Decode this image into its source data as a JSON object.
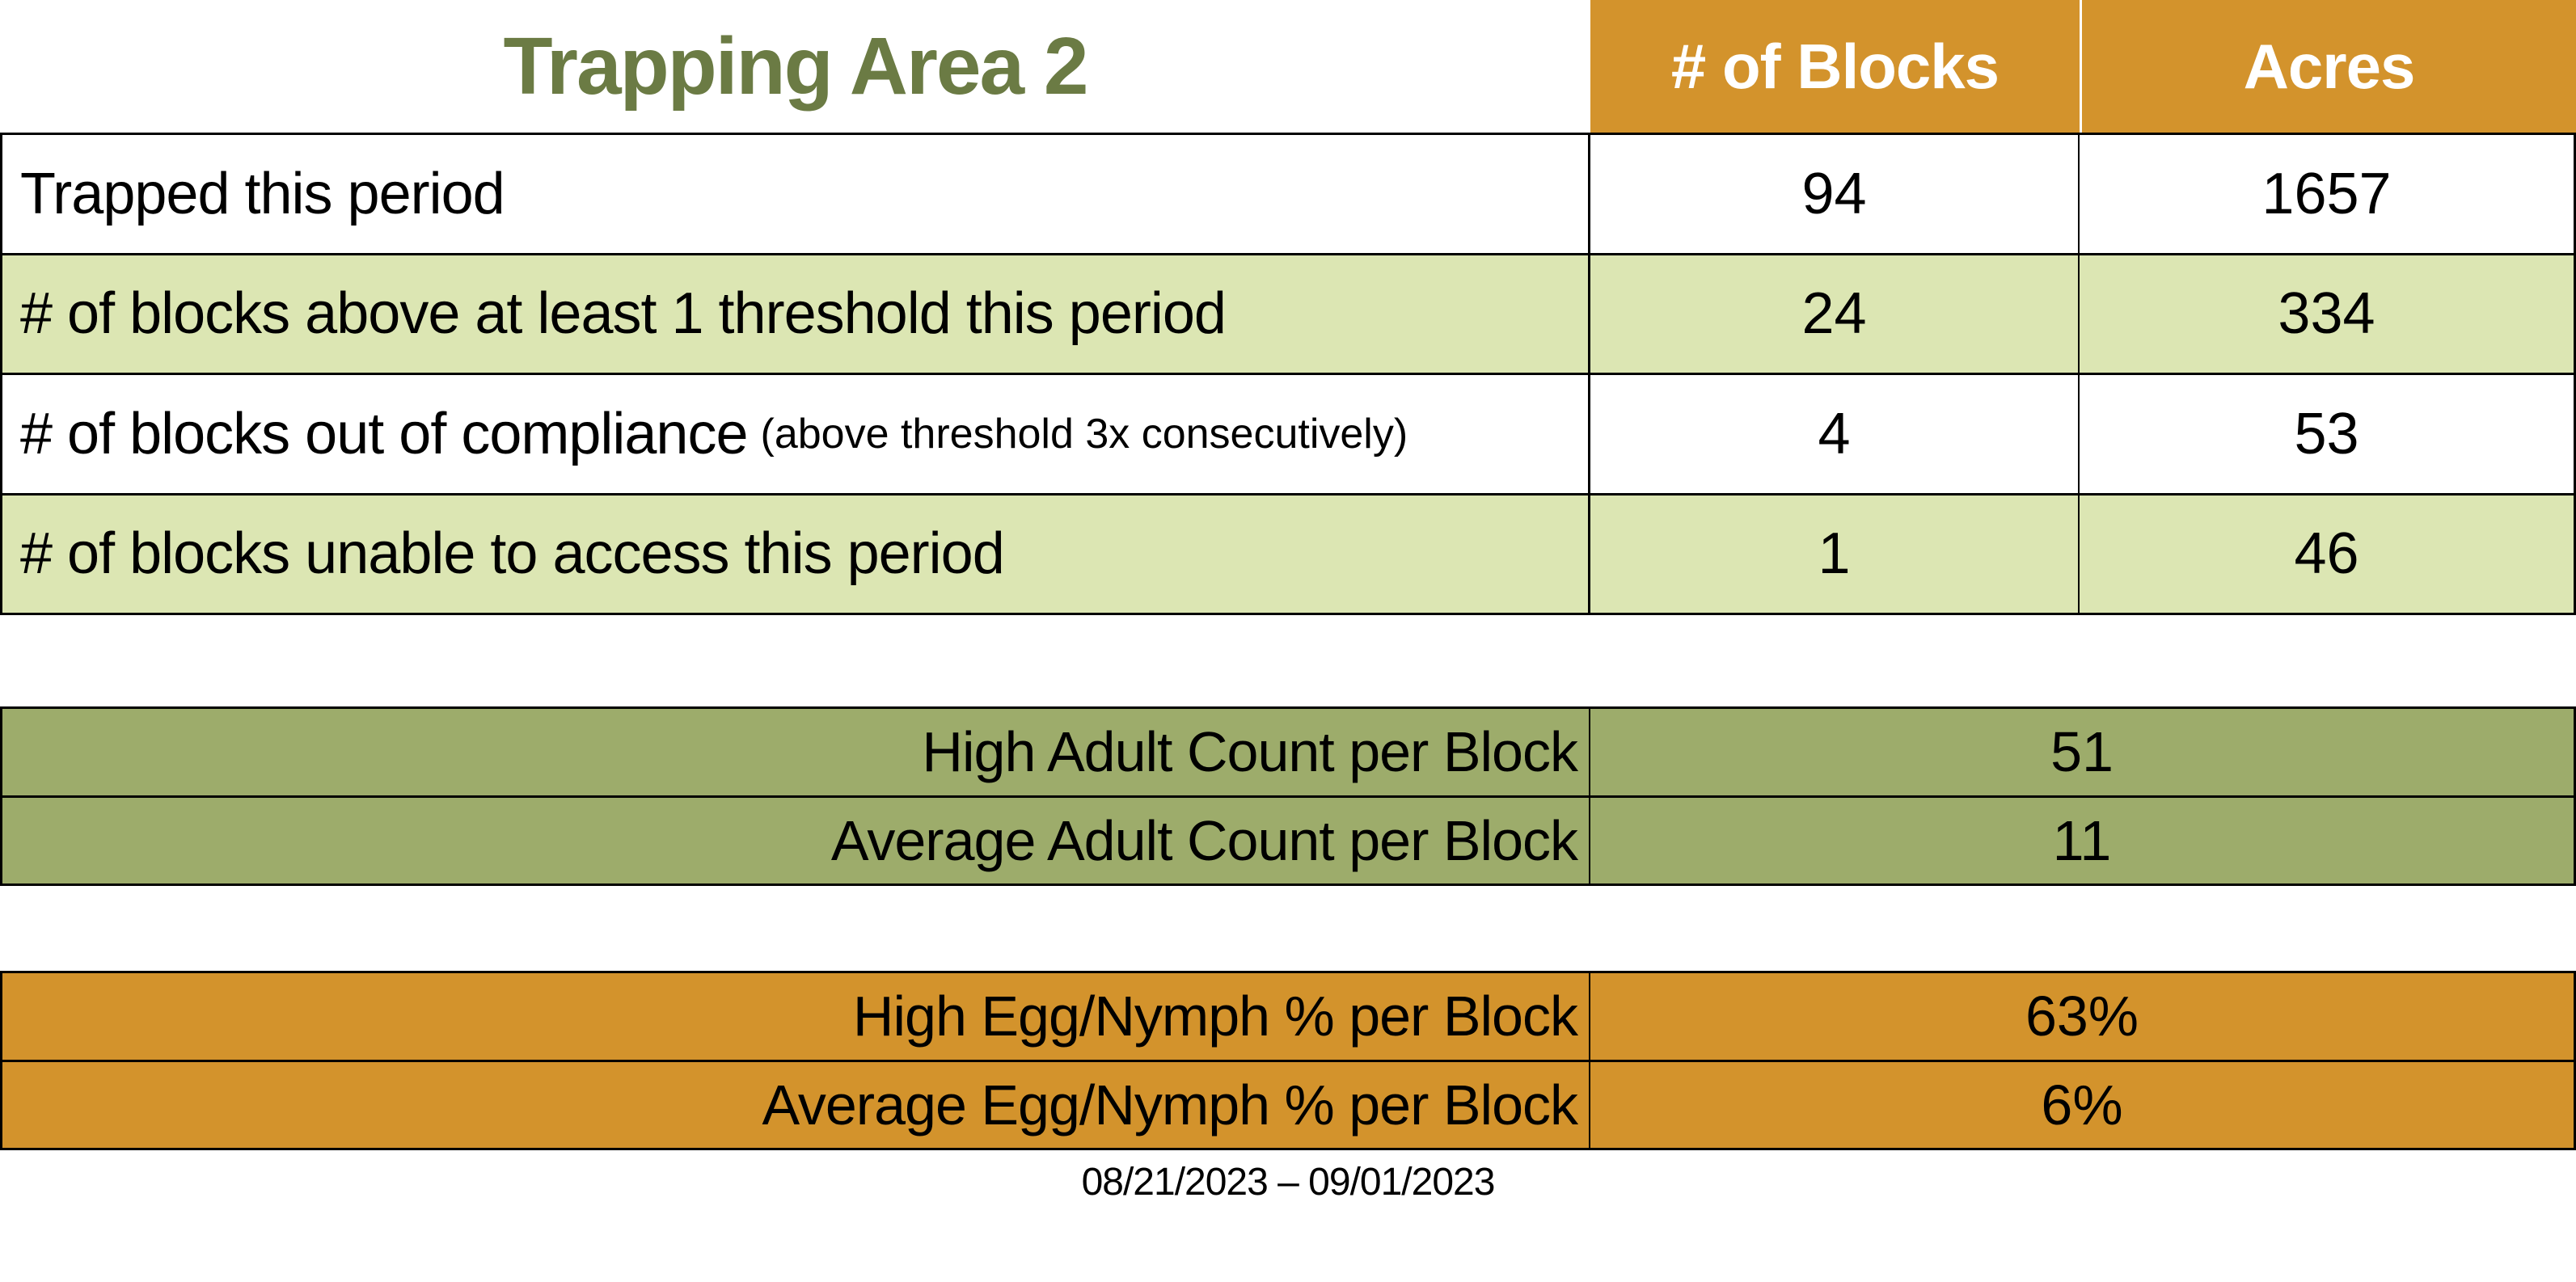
{
  "title": "Trapping Area 2",
  "colors": {
    "header_orange": "#D3932C",
    "row_light_green": "#DCE6B3",
    "olive_green": "#9DAC6B",
    "title_green": "#6B7B44"
  },
  "main_table": {
    "headers": [
      "# of Blocks",
      "Acres"
    ],
    "rows": [
      {
        "label": "Trapped this period",
        "note": "",
        "blocks": "94",
        "acres": "1657"
      },
      {
        "label": "# of blocks above at least 1 threshold this period",
        "note": "",
        "blocks": "24",
        "acres": "334"
      },
      {
        "label": "# of blocks out of compliance",
        "note": "(above threshold 3x consecutively)",
        "blocks": "4",
        "acres": "53"
      },
      {
        "label": "# of blocks unable to access this period",
        "note": "",
        "blocks": "1",
        "acres": "46"
      }
    ]
  },
  "adult_table": {
    "rows": [
      {
        "label": "High Adult Count per Block",
        "value": "51"
      },
      {
        "label": "Average Adult Count per Block",
        "value": "11"
      }
    ]
  },
  "egg_table": {
    "rows": [
      {
        "label": "High Egg/Nymph % per Block",
        "value": "63%"
      },
      {
        "label": "Average Egg/Nymph % per Block",
        "value": "6%"
      }
    ]
  },
  "footer": {
    "date_range": "08/21/2023 – 09/01/2023"
  }
}
